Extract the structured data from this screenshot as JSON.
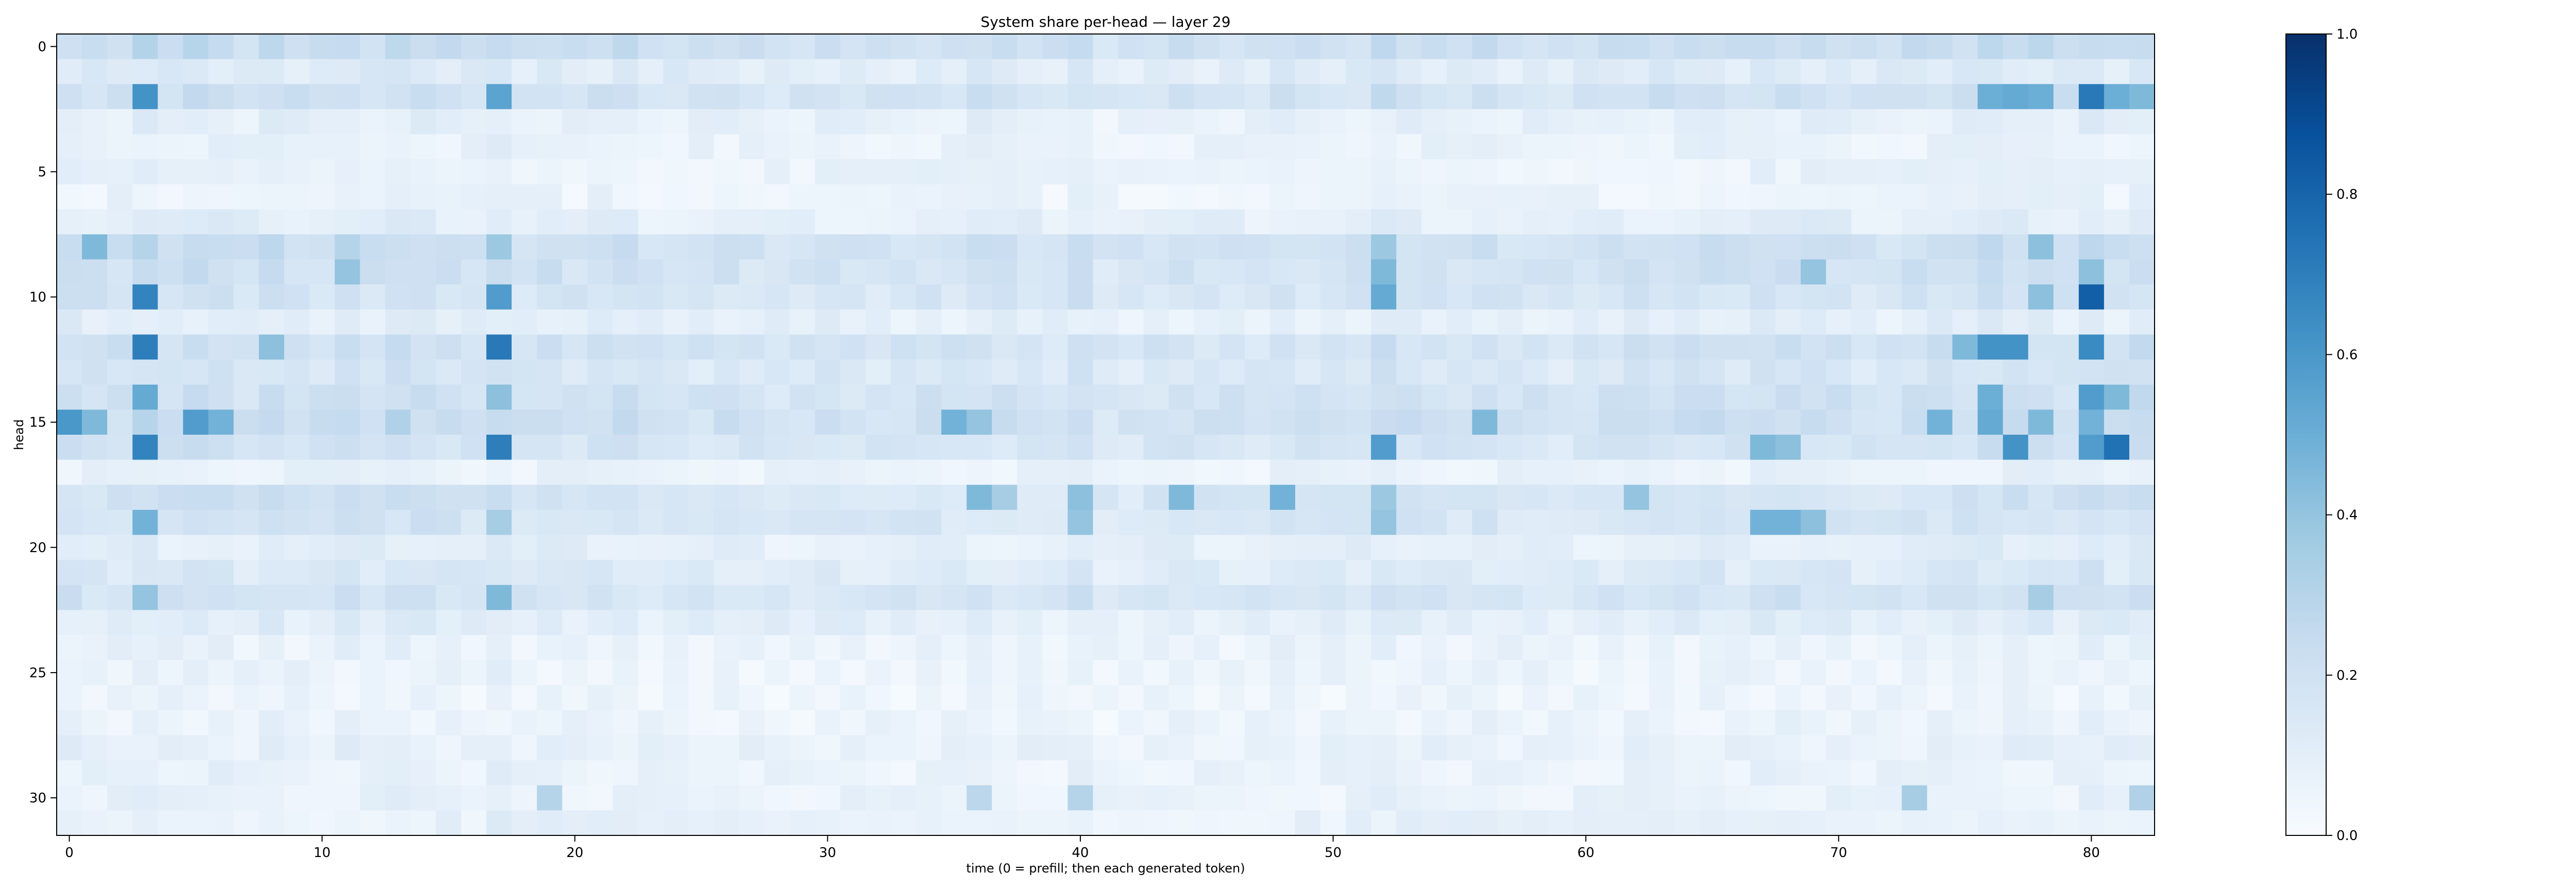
{
  "chart_data": {
    "type": "heatmap",
    "title": "System share per-head — layer 29",
    "xlabel": "time (0 = prefill; then each generated token)",
    "ylabel": "head",
    "x_ticks": [
      0,
      10,
      20,
      30,
      40,
      50,
      60,
      70,
      80
    ],
    "y_ticks": [
      0,
      5,
      10,
      15,
      20,
      25,
      30
    ],
    "n_cols": 83,
    "n_rows": 32,
    "colormap": "Blues",
    "colorbar": {
      "vmin": 0.0,
      "vmax": 1.0,
      "ticks": [
        "0.0",
        "0.2",
        "0.4",
        "0.6",
        "0.8",
        "1.0"
      ]
    },
    "row_base": [
      0.25,
      0.14,
      0.22,
      0.1,
      0.08,
      0.08,
      0.07,
      0.11,
      0.24,
      0.22,
      0.2,
      0.11,
      0.22,
      0.18,
      0.22,
      0.24,
      0.2,
      0.08,
      0.2,
      0.19,
      0.11,
      0.16,
      0.2,
      0.12,
      0.08,
      0.07,
      0.06,
      0.07,
      0.09,
      0.08,
      0.08,
      0.09
    ],
    "col_factor": [
      1.0,
      0.92,
      0.9,
      1.15,
      0.95,
      1.05,
      1.0,
      0.85,
      1.05,
      0.9,
      0.85,
      1.0,
      0.9,
      1.05,
      1.0,
      0.95,
      0.9,
      1.15,
      0.85,
      0.95,
      0.85,
      0.9,
      0.95,
      0.8,
      0.85,
      0.8,
      0.85,
      0.8,
      0.75,
      0.8,
      0.85,
      0.8,
      0.75,
      0.8,
      0.85,
      0.8,
      0.9,
      0.85,
      0.8,
      0.75,
      1.0,
      0.7,
      0.75,
      0.8,
      0.85,
      0.8,
      0.8,
      0.75,
      0.9,
      0.8,
      0.8,
      0.85,
      1.05,
      0.9,
      0.85,
      0.85,
      0.9,
      0.8,
      0.8,
      0.75,
      0.8,
      0.85,
      0.95,
      0.95,
      0.9,
      0.95,
      0.85,
      1.0,
      1.0,
      0.95,
      0.9,
      0.8,
      0.8,
      0.9,
      0.95,
      0.9,
      1.05,
      1.0,
      1.0,
      0.9,
      1.1,
      0.9,
      1.05
    ],
    "highlights": [
      [
        2,
        3,
        0.62
      ],
      [
        2,
        17,
        0.55
      ],
      [
        2,
        76,
        0.5
      ],
      [
        2,
        77,
        0.52
      ],
      [
        2,
        78,
        0.5
      ],
      [
        2,
        80,
        0.72
      ],
      [
        2,
        81,
        0.5
      ],
      [
        2,
        82,
        0.45
      ],
      [
        8,
        1,
        0.45
      ],
      [
        8,
        11,
        0.3
      ],
      [
        8,
        17,
        0.38
      ],
      [
        8,
        52,
        0.38
      ],
      [
        8,
        78,
        0.42
      ],
      [
        9,
        11,
        0.4
      ],
      [
        9,
        52,
        0.45
      ],
      [
        9,
        69,
        0.4
      ],
      [
        9,
        80,
        0.42
      ],
      [
        10,
        3,
        0.68
      ],
      [
        10,
        17,
        0.58
      ],
      [
        10,
        52,
        0.52
      ],
      [
        10,
        78,
        0.42
      ],
      [
        10,
        80,
        0.82
      ],
      [
        12,
        3,
        0.7
      ],
      [
        12,
        17,
        0.72
      ],
      [
        12,
        8,
        0.42
      ],
      [
        12,
        76,
        0.62
      ],
      [
        12,
        77,
        0.62
      ],
      [
        12,
        80,
        0.65
      ],
      [
        12,
        75,
        0.45
      ],
      [
        14,
        3,
        0.52
      ],
      [
        14,
        17,
        0.42
      ],
      [
        14,
        76,
        0.5
      ],
      [
        14,
        80,
        0.58
      ],
      [
        14,
        81,
        0.45
      ],
      [
        15,
        0,
        0.6
      ],
      [
        15,
        1,
        0.45
      ],
      [
        15,
        5,
        0.58
      ],
      [
        15,
        6,
        0.48
      ],
      [
        15,
        13,
        0.32
      ],
      [
        15,
        35,
        0.48
      ],
      [
        15,
        36,
        0.4
      ],
      [
        15,
        56,
        0.45
      ],
      [
        15,
        74,
        0.48
      ],
      [
        15,
        76,
        0.52
      ],
      [
        15,
        78,
        0.45
      ],
      [
        15,
        80,
        0.48
      ],
      [
        16,
        3,
        0.68
      ],
      [
        16,
        17,
        0.7
      ],
      [
        16,
        52,
        0.58
      ],
      [
        16,
        67,
        0.45
      ],
      [
        16,
        68,
        0.42
      ],
      [
        16,
        77,
        0.62
      ],
      [
        16,
        80,
        0.58
      ],
      [
        16,
        81,
        0.75
      ],
      [
        18,
        36,
        0.45
      ],
      [
        18,
        37,
        0.35
      ],
      [
        18,
        40,
        0.42
      ],
      [
        18,
        44,
        0.45
      ],
      [
        18,
        48,
        0.48
      ],
      [
        18,
        52,
        0.38
      ],
      [
        18,
        62,
        0.4
      ],
      [
        19,
        3,
        0.48
      ],
      [
        19,
        17,
        0.35
      ],
      [
        19,
        40,
        0.4
      ],
      [
        19,
        52,
        0.4
      ],
      [
        19,
        67,
        0.48
      ],
      [
        19,
        68,
        0.48
      ],
      [
        19,
        69,
        0.42
      ],
      [
        22,
        3,
        0.4
      ],
      [
        22,
        17,
        0.45
      ],
      [
        22,
        78,
        0.35
      ],
      [
        30,
        19,
        0.3
      ],
      [
        30,
        36,
        0.28
      ],
      [
        30,
        40,
        0.3
      ],
      [
        30,
        73,
        0.35
      ],
      [
        30,
        82,
        0.32
      ]
    ]
  }
}
